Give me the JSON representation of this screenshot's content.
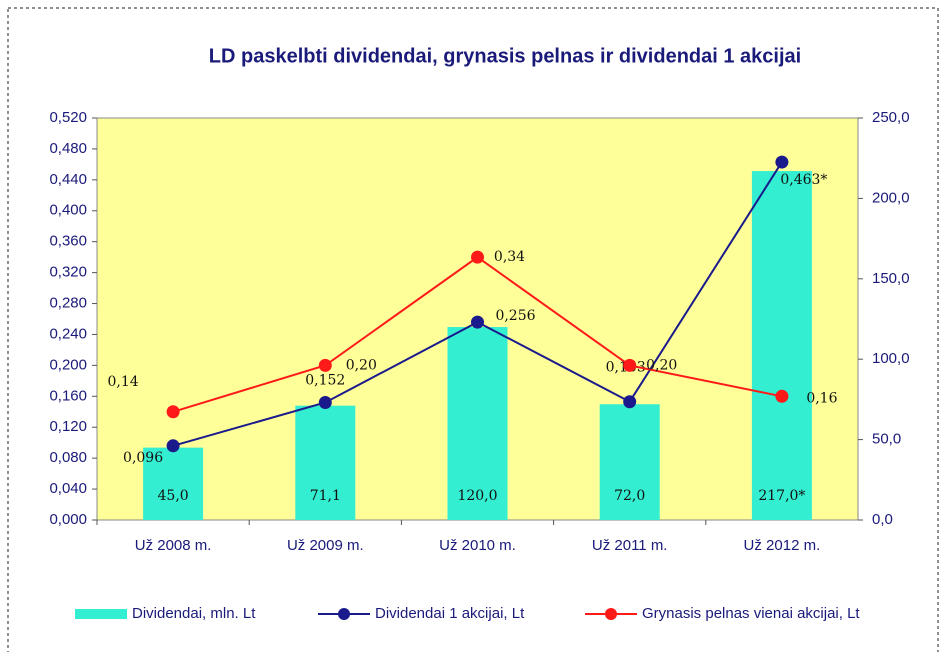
{
  "chart_data": {
    "type": "bar-line",
    "title": "LD paskelbti dividendai, grynasis pelnas ir dividendai 1 akcijai",
    "categories": [
      "Už 2008 m.",
      "Už 2009 m.",
      "Už 2010 m.",
      "Už 2011 m.",
      "Už 2012 m."
    ],
    "series": [
      {
        "name": "Dividendai, mln. Lt",
        "type": "bar",
        "axis": "y2",
        "color": "#33eed0",
        "values": [
          45.0,
          71.1,
          120.0,
          72.0,
          217.0
        ],
        "value_labels": [
          "45,0",
          "71,1",
          "120,0",
          "72,0",
          "217,0*"
        ]
      },
      {
        "name": "Dividendai 1 akcijai, Lt",
        "type": "line",
        "axis": "y",
        "color": "#1a1a8c",
        "values": [
          0.096,
          0.152,
          0.256,
          0.153,
          0.463
        ],
        "value_labels": [
          "0,096",
          "0,152",
          "0,256",
          "0,153",
          "0,463*"
        ]
      },
      {
        "name": "Grynasis pelnas vienai akcijai, Lt",
        "type": "line",
        "axis": "y",
        "color": "#ff1a1a",
        "values": [
          0.14,
          0.2,
          0.34,
          0.2,
          0.16
        ],
        "value_labels": [
          "0,14",
          "0,20",
          "0,34",
          "0,20",
          "0,16"
        ]
      }
    ],
    "ylim": [
      0,
      0.52
    ],
    "yticks": [
      {
        "value": 0,
        "label": "0,000"
      },
      {
        "value": 0.04,
        "label": "0,040"
      },
      {
        "value": 0.08,
        "label": "0,080"
      },
      {
        "value": 0.12,
        "label": "0,120"
      },
      {
        "value": 0.16,
        "label": "0,160"
      },
      {
        "value": 0.2,
        "label": "0,200"
      },
      {
        "value": 0.24,
        "label": "0,240"
      },
      {
        "value": 0.28,
        "label": "0,280"
      },
      {
        "value": 0.32,
        "label": "0,320"
      },
      {
        "value": 0.36,
        "label": "0,360"
      },
      {
        "value": 0.4,
        "label": "0,400"
      },
      {
        "value": 0.44,
        "label": "0,440"
      },
      {
        "value": 0.48,
        "label": "0,480"
      },
      {
        "value": 0.52,
        "label": "0,520"
      }
    ],
    "y2lim": [
      0,
      250
    ],
    "y2ticks": [
      {
        "value": 0,
        "label": "0,0"
      },
      {
        "value": 50,
        "label": "50,0"
      },
      {
        "value": 100,
        "label": "100,0"
      },
      {
        "value": 150,
        "label": "150,0"
      },
      {
        "value": 200,
        "label": "200,0"
      },
      {
        "value": 250,
        "label": "250,0"
      }
    ],
    "grid": false,
    "legend": "bottom"
  }
}
